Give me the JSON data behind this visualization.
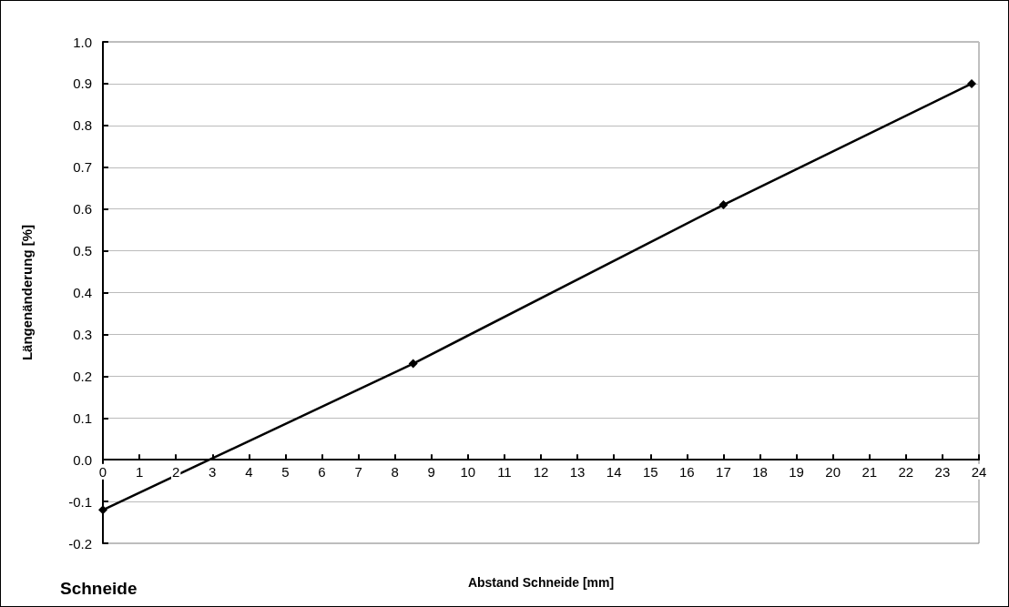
{
  "chart_data": {
    "type": "line",
    "xlabel": "Abstand Schneide [mm]",
    "ylabel": "Längenänderung [%]",
    "annotations": [
      "Schneide"
    ],
    "x": [
      0,
      8.5,
      17,
      23.8
    ],
    "series": [
      {
        "color": "#000000",
        "values": [
          -0.12,
          0.23,
          0.61,
          0.9
        ]
      }
    ],
    "xlim": [
      0,
      24
    ],
    "xticks": [
      0,
      1,
      2,
      3,
      4,
      5,
      6,
      7,
      8,
      9,
      10,
      11,
      12,
      13,
      14,
      15,
      16,
      17,
      18,
      19,
      20,
      21,
      22,
      23,
      24
    ],
    "ylim": [
      -0.2,
      1.0
    ],
    "yticks": [
      {
        "value": -0.2,
        "label": "-0.2"
      },
      {
        "value": -0.1,
        "label": "-0.1"
      },
      {
        "value": 0,
        "label": "0.0"
      },
      {
        "value": 0.1,
        "label": "0.1"
      },
      {
        "value": 0.2,
        "label": "0.2"
      },
      {
        "value": 0.3,
        "label": "0.3"
      },
      {
        "value": 0.4,
        "label": "0.4"
      },
      {
        "value": 0.5,
        "label": "0.5"
      },
      {
        "value": 0.6,
        "label": "0.6"
      },
      {
        "value": 0.7,
        "label": "0.7"
      },
      {
        "value": 0.8,
        "label": "0.8"
      },
      {
        "value": 0.9,
        "label": "0.9"
      },
      {
        "value": 1.0,
        "label": "1.0"
      }
    ],
    "grid": "y",
    "marker": "diamond",
    "line_style": "solid"
  }
}
